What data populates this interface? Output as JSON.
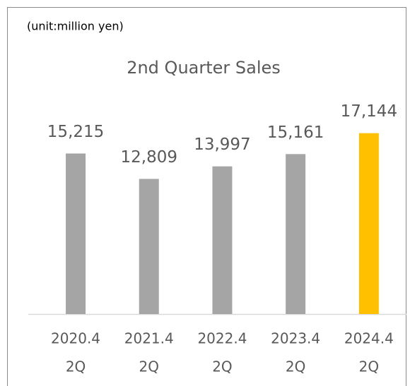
{
  "chart_data": {
    "type": "bar",
    "unit_note": "(unit:million yen)",
    "title": "2nd Quarter Sales",
    "categories": [
      [
        "2020.4",
        "2Q"
      ],
      [
        "2021.4",
        "2Q"
      ],
      [
        "2022.4",
        "2Q"
      ],
      [
        "2023.4",
        "2Q"
      ],
      [
        "2024.4",
        "2Q"
      ]
    ],
    "values": [
      15215,
      12809,
      13997,
      15161,
      17144
    ],
    "value_labels": [
      "15,215",
      "12,809",
      "13,997",
      "15,161",
      "17,144"
    ],
    "colors": [
      "#a5a5a5",
      "#a5a5a5",
      "#a5a5a5",
      "#a5a5a5",
      "#ffc000"
    ],
    "ylim": [
      0,
      20000
    ]
  }
}
